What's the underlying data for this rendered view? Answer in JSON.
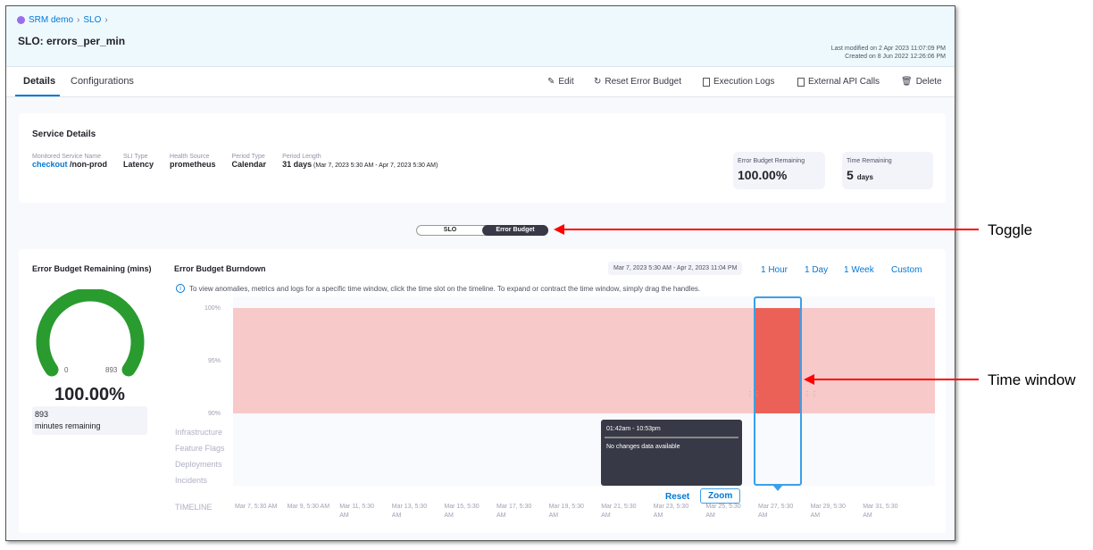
{
  "breadcrumb": {
    "items": [
      "SRM demo",
      "SLO"
    ]
  },
  "header": {
    "title": "SLO: errors_per_min",
    "last_modified": "Last modified on 2 Apr 2023 11:07:09 PM",
    "created": "Created on 8 Jun 2022 12:26:06 PM"
  },
  "tabs": [
    {
      "label": "Details",
      "active": true
    },
    {
      "label": "Configurations",
      "active": false
    }
  ],
  "actions": [
    {
      "label": "Edit",
      "icon": "pencil-icon"
    },
    {
      "label": "Reset Error Budget",
      "icon": "reset-icon"
    },
    {
      "label": "Execution Logs",
      "icon": "document-icon"
    },
    {
      "label": "External API Calls",
      "icon": "api-icon"
    },
    {
      "label": "Delete",
      "icon": "trash-icon"
    }
  ],
  "service": {
    "title": "Service Details",
    "fields": [
      {
        "label": "Monitored Service Name",
        "value": "checkout",
        "suffix": " /non-prod"
      },
      {
        "label": "SLI Type",
        "value": "Latency"
      },
      {
        "label": "Health Source",
        "value": "prometheus"
      },
      {
        "label": "Period Type",
        "value": "Calendar"
      },
      {
        "label": "Period Length",
        "value": "31 days",
        "suffix": " (Mar 7, 2023 5:30 AM - Apr 7, 2023 5:30 AM)"
      }
    ],
    "budget_label": "Error Budget Remaining",
    "budget_value": "100.00%",
    "time_label": "Time Remaining",
    "time_value": "5",
    "time_unit": "days"
  },
  "toggle": {
    "options": [
      "SLO",
      "Error Budget"
    ],
    "selected": "Error Budget"
  },
  "gauge": {
    "title": "Error Budget Remaining (mins)",
    "min": "0",
    "max": "893",
    "percent": "100.00%",
    "fraction": 1.0,
    "remaining": "893",
    "remaining_label": "minutes remaining",
    "color": "#299b2f"
  },
  "burndown": {
    "title": "Error Budget Burndown",
    "range": "Mar 7, 2023 5:30 AM - Apr 2, 2023 11:04 PM",
    "ranges": [
      "1 Hour",
      "1 Day",
      "1 Week",
      "Custom"
    ],
    "info": "To view anomalies, metrics and logs for a specific time window, click the time slot on the timeline. To expand or contract the time window, simply drag the handles.",
    "yticks": [
      "100%",
      "95%",
      "90%"
    ],
    "rows": [
      "Infrastructure",
      "Feature Flags",
      "Deployments",
      "Incidents"
    ],
    "timeline_label": "TIMELINE",
    "xticks": [
      "Mar 7, 5:30 AM",
      "Mar 9, 5:30 AM",
      "Mar 11, 5:30 AM",
      "Mar 13, 5:30 AM",
      "Mar 15, 5:30 AM",
      "Mar 17, 5:30 AM",
      "Mar 19, 5:30 AM",
      "Mar 21, 5:30 AM",
      "Mar 23, 5:30 AM",
      "Mar 25, 5:30 AM",
      "Mar 27, 5:30 AM",
      "Mar 29, 5:30 AM",
      "Mar 31, 5:30 AM"
    ],
    "tooltip": {
      "time": "01:42am - 10:53pm",
      "text": "No changes data available"
    },
    "reset": "Reset",
    "zoom": "Zoom"
  },
  "annotations": {
    "toggle": "Toggle",
    "time_window": "Time window"
  }
}
